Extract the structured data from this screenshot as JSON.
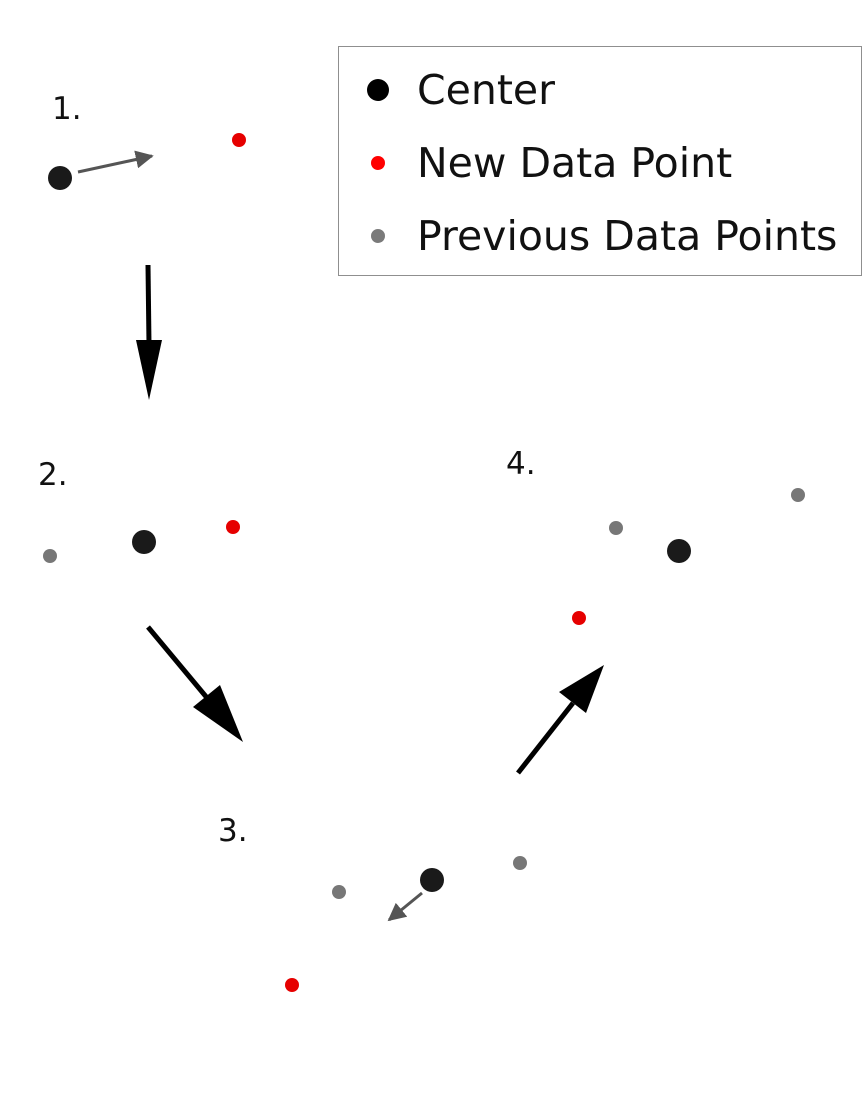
{
  "legend": {
    "entries": [
      {
        "label": "Center",
        "color": "#000000",
        "marker": "large-dot"
      },
      {
        "label": "New Data Point",
        "color": "#ff0000",
        "marker": "small-dot"
      },
      {
        "label": "Previous Data Points",
        "color": "#7a7a7a",
        "marker": "small-dot"
      }
    ]
  },
  "steps": [
    {
      "label": "1."
    },
    {
      "label": "2."
    },
    {
      "label": "3."
    },
    {
      "label": "4."
    }
  ],
  "colors": {
    "center": "#1a1a1a",
    "new_point": "#e60000",
    "previous_point": "#777777",
    "step_arrow": "#000000",
    "update_arrow": "#555555"
  }
}
